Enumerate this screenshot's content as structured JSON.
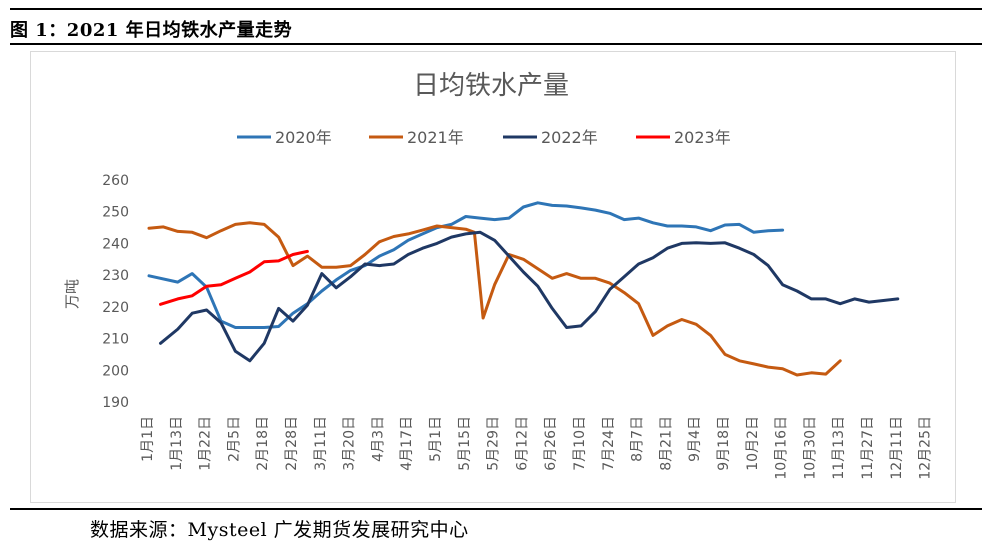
{
  "figure": {
    "label": "图 1：2021 年日均铁水产量走势",
    "source": "数据来源：Mysteel  广发期货发展研究中心"
  },
  "chart_data": {
    "type": "line",
    "title": "日均铁水产量",
    "ylabel": "万吨",
    "xlabel": "",
    "ylim": [
      190,
      260
    ],
    "yticks": [
      190,
      200,
      210,
      220,
      230,
      240,
      250,
      260
    ],
    "legend_position": "top",
    "categories": [
      "1月1日",
      "1月13日",
      "1月22日",
      "2月5日",
      "2月18日",
      "2月28日",
      "3月11日",
      "3月20日",
      "4月3日",
      "4月17日",
      "5月1日",
      "5月15日",
      "5月29日",
      "6月12日",
      "6月26日",
      "7月10日",
      "7月24日",
      "8月7日",
      "8月21日",
      "9月4日",
      "9月18日",
      "10月2日",
      "10月16日",
      "10月30日",
      "11月13日",
      "11月27日",
      "12月11日",
      "12月25日"
    ],
    "series": [
      {
        "name": "2020年",
        "color": "#2e75b6",
        "points": [
          [
            0,
            229.8
          ],
          [
            1,
            227.8
          ],
          [
            1.5,
            230.5
          ],
          [
            2,
            226.2
          ],
          [
            2.5,
            215.5
          ],
          [
            3,
            213.5
          ],
          [
            4,
            213.5
          ],
          [
            4.5,
            213.8
          ],
          [
            5,
            218
          ],
          [
            5.5,
            221
          ],
          [
            6,
            225
          ],
          [
            6.5,
            228.5
          ],
          [
            7,
            231.5
          ],
          [
            7.5,
            233
          ],
          [
            8,
            236
          ],
          [
            8.5,
            238
          ],
          [
            9,
            241
          ],
          [
            9.5,
            243
          ],
          [
            10,
            245
          ],
          [
            10.5,
            246
          ],
          [
            11,
            248.5
          ],
          [
            11.5,
            248
          ],
          [
            12,
            247.5
          ],
          [
            12.5,
            248
          ],
          [
            13,
            251.5
          ],
          [
            13.5,
            252.8
          ],
          [
            14,
            252
          ],
          [
            14.5,
            251.8
          ],
          [
            15,
            251.2
          ],
          [
            15.5,
            250.5
          ],
          [
            16,
            249.5
          ],
          [
            16.5,
            247.5
          ],
          [
            17,
            248
          ],
          [
            17.5,
            246.5
          ],
          [
            18,
            245.5
          ],
          [
            18.5,
            245.5
          ],
          [
            19,
            245.2
          ],
          [
            19.5,
            244
          ],
          [
            20,
            245.8
          ],
          [
            20.5,
            246
          ],
          [
            21,
            243.5
          ],
          [
            21.5,
            244
          ],
          [
            22,
            244.2
          ]
        ]
      },
      {
        "name": "2021年",
        "color": "#c55a11",
        "points": [
          [
            0,
            244.8
          ],
          [
            0.5,
            245.2
          ],
          [
            1,
            243.8
          ],
          [
            1.5,
            243.5
          ],
          [
            2,
            241.8
          ],
          [
            2.5,
            244
          ],
          [
            3,
            246
          ],
          [
            3.5,
            246.5
          ],
          [
            4,
            246
          ],
          [
            4.5,
            242
          ],
          [
            5,
            233
          ],
          [
            5.5,
            236
          ],
          [
            6,
            232.5
          ],
          [
            6.5,
            232.5
          ],
          [
            7,
            233
          ],
          [
            7.5,
            236.5
          ],
          [
            8,
            240.5
          ],
          [
            8.5,
            242.2
          ],
          [
            9,
            243
          ],
          [
            9.5,
            244.2
          ],
          [
            10,
            245.5
          ],
          [
            10.5,
            245
          ],
          [
            11,
            244.5
          ],
          [
            11.3,
            243.5
          ],
          [
            11.6,
            216.5
          ],
          [
            12,
            227
          ],
          [
            12.5,
            236.5
          ],
          [
            13,
            235
          ],
          [
            13.5,
            232
          ],
          [
            14,
            229
          ],
          [
            14.5,
            230.5
          ],
          [
            15,
            229
          ],
          [
            15.5,
            229
          ],
          [
            16,
            227.5
          ],
          [
            16.5,
            224.5
          ],
          [
            17,
            221
          ],
          [
            17.5,
            211
          ],
          [
            18,
            214
          ],
          [
            18.5,
            216
          ],
          [
            19,
            214.5
          ],
          [
            19.5,
            211
          ],
          [
            20,
            205
          ],
          [
            20.5,
            203
          ],
          [
            21,
            202
          ],
          [
            21.5,
            201
          ],
          [
            22,
            200.5
          ],
          [
            22.5,
            198.5
          ],
          [
            23,
            199.2
          ],
          [
            23.5,
            198.8
          ],
          [
            24,
            203
          ]
        ]
      },
      {
        "name": "2022年",
        "color": "#1f3864",
        "points": [
          [
            0.4,
            208.5
          ],
          [
            1,
            213
          ],
          [
            1.5,
            218
          ],
          [
            2,
            219
          ],
          [
            2.5,
            215
          ],
          [
            3,
            206
          ],
          [
            3.5,
            203
          ],
          [
            4,
            208.5
          ],
          [
            4.5,
            219.5
          ],
          [
            5,
            215.5
          ],
          [
            5.5,
            220.5
          ],
          [
            6,
            230.5
          ],
          [
            6.5,
            226
          ],
          [
            7,
            229.5
          ],
          [
            7.5,
            233.5
          ],
          [
            8,
            233
          ],
          [
            8.5,
            233.5
          ],
          [
            9,
            236.5
          ],
          [
            9.5,
            238.5
          ],
          [
            10,
            240
          ],
          [
            10.5,
            242
          ],
          [
            11,
            243
          ],
          [
            11.5,
            243.5
          ],
          [
            12,
            241
          ],
          [
            12.5,
            236
          ],
          [
            13,
            231
          ],
          [
            13.5,
            226.5
          ],
          [
            14,
            219.5
          ],
          [
            14.5,
            213.5
          ],
          [
            15,
            214
          ],
          [
            15.5,
            218.5
          ],
          [
            16,
            225.5
          ],
          [
            16.5,
            229.5
          ],
          [
            17,
            233.5
          ],
          [
            17.5,
            235.5
          ],
          [
            18,
            238.5
          ],
          [
            18.5,
            240
          ],
          [
            19,
            240.2
          ],
          [
            19.5,
            240
          ],
          [
            20,
            240.2
          ],
          [
            20.5,
            238.5
          ],
          [
            21,
            236.5
          ],
          [
            21.5,
            233
          ],
          [
            22,
            227
          ],
          [
            22.5,
            225
          ],
          [
            23,
            222.5
          ],
          [
            23.5,
            222.5
          ],
          [
            24,
            221
          ],
          [
            24.5,
            222.5
          ],
          [
            25,
            221.5
          ],
          [
            25.5,
            222
          ],
          [
            26,
            222.5
          ]
        ]
      },
      {
        "name": "2023年",
        "color": "#ff0000",
        "points": [
          [
            0.4,
            220.8
          ],
          [
            1,
            222.5
          ],
          [
            1.5,
            223.5
          ],
          [
            2,
            226.5
          ],
          [
            2.5,
            227
          ],
          [
            3,
            229
          ],
          [
            3.5,
            231
          ],
          [
            4,
            234.2
          ],
          [
            4.5,
            234.5
          ],
          [
            5,
            236.5
          ],
          [
            5.5,
            237.5
          ]
        ]
      }
    ]
  }
}
